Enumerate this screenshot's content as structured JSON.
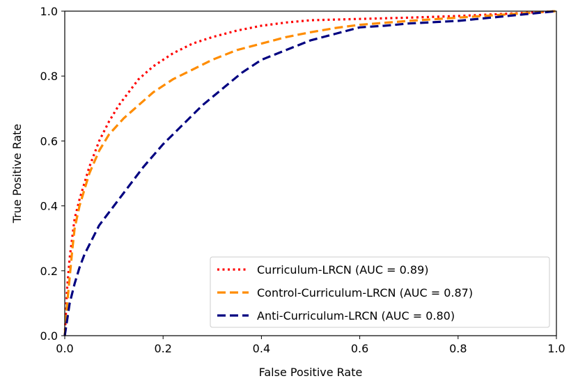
{
  "chart_data": {
    "type": "line",
    "title": "",
    "xlabel": "False Positive Rate",
    "ylabel": "True Positive Rate",
    "xlim": [
      0.0,
      1.0
    ],
    "ylim": [
      0.0,
      1.0
    ],
    "xticks": [
      "0.0",
      "0.2",
      "0.4",
      "0.6",
      "0.8",
      "1.0"
    ],
    "yticks": [
      "0.0",
      "0.2",
      "0.4",
      "0.6",
      "0.8",
      "1.0"
    ],
    "grid": false,
    "legend_position": "lower-right",
    "series": [
      {
        "name": "Curriculum-LRCN (AUC =  0.89)",
        "color": "#ff0000",
        "style": "dotted",
        "x": [
          0.0,
          0.005,
          0.01,
          0.015,
          0.02,
          0.03,
          0.04,
          0.05,
          0.07,
          0.09,
          0.11,
          0.13,
          0.15,
          0.18,
          0.22,
          0.26,
          0.3,
          0.35,
          0.4,
          0.45,
          0.5,
          0.6,
          0.7,
          0.8,
          0.9,
          1.0
        ],
        "y": [
          0.0,
          0.15,
          0.24,
          0.3,
          0.36,
          0.42,
          0.47,
          0.52,
          0.6,
          0.66,
          0.71,
          0.75,
          0.79,
          0.83,
          0.87,
          0.9,
          0.92,
          0.94,
          0.955,
          0.965,
          0.972,
          0.976,
          0.98,
          0.985,
          0.992,
          1.0
        ]
      },
      {
        "name": "Control-Curriculum-LRCN (AUC =  0.87)",
        "color": "#ff8c00",
        "style": "dashed",
        "x": [
          0.0,
          0.005,
          0.01,
          0.015,
          0.02,
          0.03,
          0.04,
          0.05,
          0.07,
          0.09,
          0.12,
          0.15,
          0.18,
          0.22,
          0.26,
          0.3,
          0.35,
          0.4,
          0.45,
          0.5,
          0.55,
          0.6,
          0.7,
          0.8,
          0.9,
          1.0
        ],
        "y": [
          0.0,
          0.1,
          0.18,
          0.26,
          0.33,
          0.4,
          0.45,
          0.5,
          0.57,
          0.62,
          0.67,
          0.71,
          0.75,
          0.79,
          0.82,
          0.85,
          0.88,
          0.9,
          0.92,
          0.935,
          0.948,
          0.958,
          0.97,
          0.98,
          0.99,
          1.0
        ]
      },
      {
        "name": "Anti-Curriculum-LRCN (AUC =  0.80)",
        "color": "#000080",
        "style": "dashed",
        "x": [
          0.0,
          0.005,
          0.01,
          0.02,
          0.03,
          0.04,
          0.05,
          0.07,
          0.1,
          0.13,
          0.16,
          0.2,
          0.24,
          0.28,
          0.32,
          0.36,
          0.4,
          0.45,
          0.5,
          0.55,
          0.6,
          0.65,
          0.7,
          0.8,
          0.9,
          1.0
        ],
        "y": [
          0.0,
          0.05,
          0.1,
          0.16,
          0.21,
          0.25,
          0.28,
          0.34,
          0.4,
          0.46,
          0.52,
          0.59,
          0.65,
          0.71,
          0.76,
          0.81,
          0.85,
          0.88,
          0.91,
          0.93,
          0.95,
          0.955,
          0.962,
          0.97,
          0.985,
          1.0
        ]
      }
    ]
  }
}
